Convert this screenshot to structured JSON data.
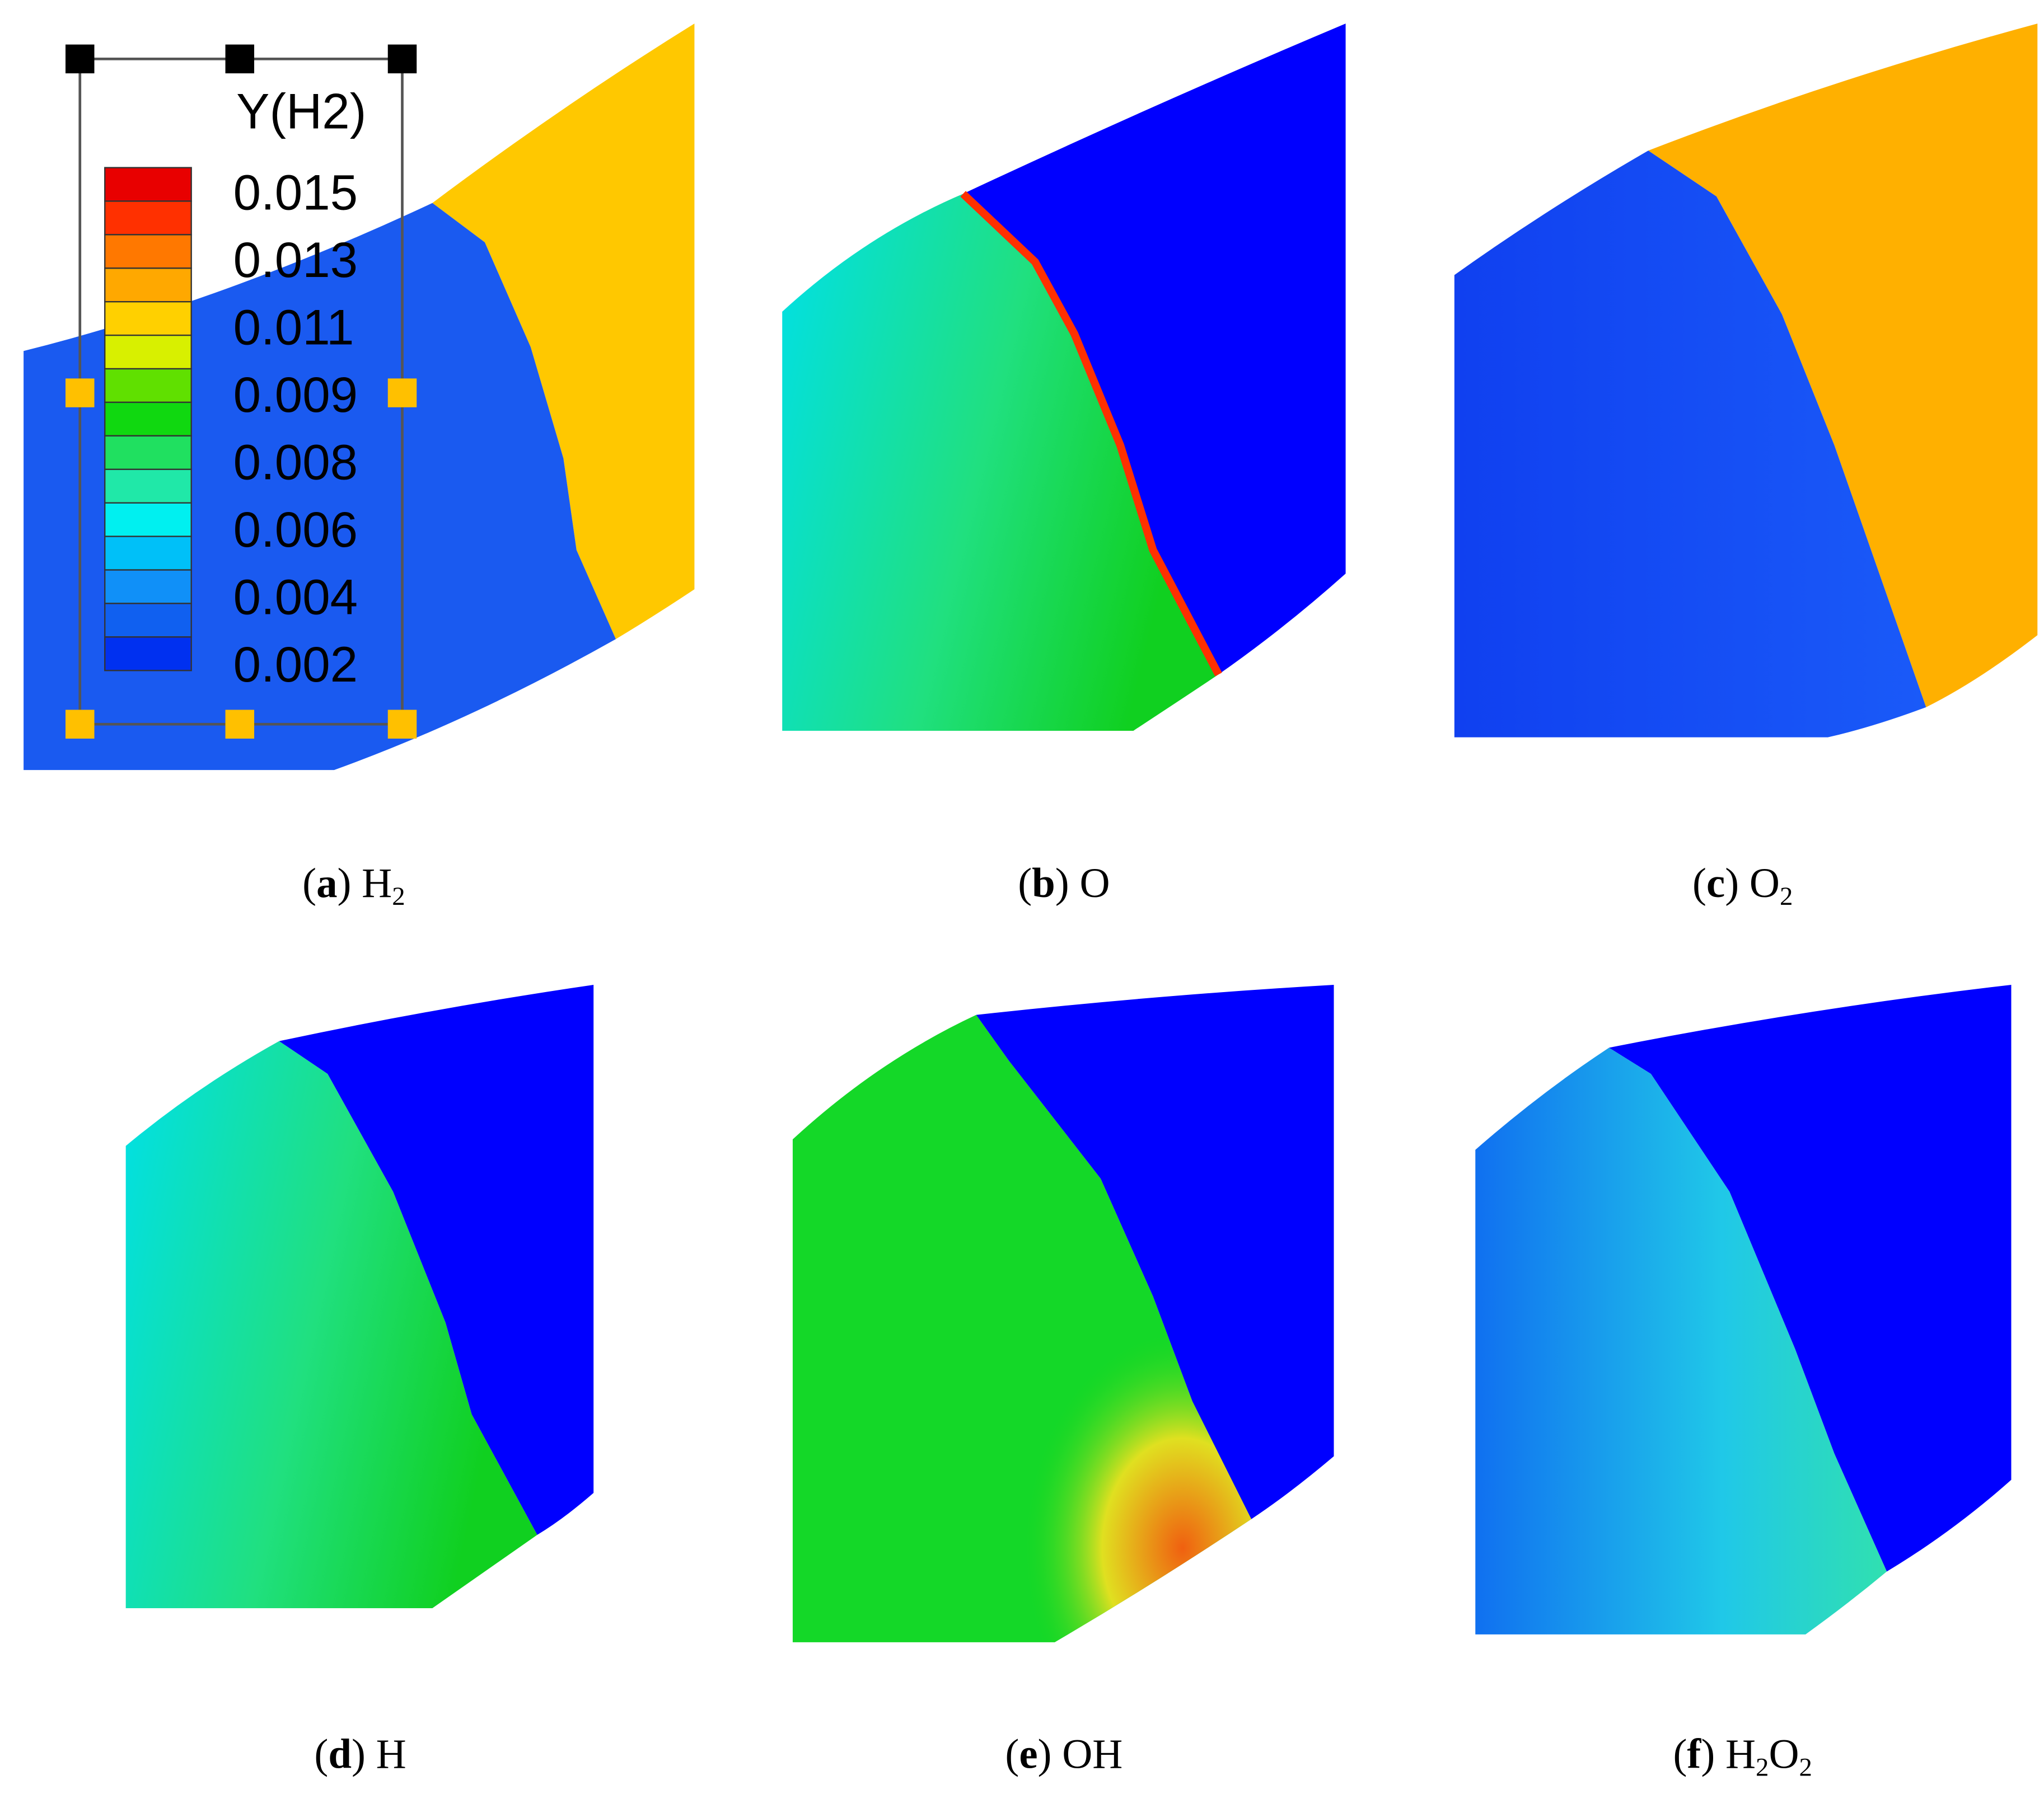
{
  "legend": {
    "title": "Y(H2)",
    "labels": [
      "0.015",
      "0.013",
      "0.011",
      "0.009",
      "0.008",
      "0.006",
      "0.004",
      "0.002"
    ]
  },
  "captions": [
    {
      "parts": [
        {
          "t": "("
        },
        {
          "t": "a",
          "bold": true
        },
        {
          "t": ") H"
        },
        {
          "t": "2",
          "sub": true
        }
      ]
    },
    {
      "parts": [
        {
          "t": "("
        },
        {
          "t": "b",
          "bold": true
        },
        {
          "t": ") O"
        }
      ]
    },
    {
      "parts": [
        {
          "t": "("
        },
        {
          "t": "c",
          "bold": true
        },
        {
          "t": ") O"
        },
        {
          "t": "2",
          "sub": true
        }
      ]
    },
    {
      "parts": [
        {
          "t": "("
        },
        {
          "t": "d",
          "bold": true
        },
        {
          "t": ") H"
        }
      ]
    },
    {
      "parts": [
        {
          "t": "("
        },
        {
          "t": "e",
          "bold": true
        },
        {
          "t": ") OH"
        }
      ]
    },
    {
      "parts": [
        {
          "t": "("
        },
        {
          "t": "f",
          "bold": true
        },
        {
          "t": ") H"
        },
        {
          "t": "2",
          "sub": true
        },
        {
          "t": "O"
        },
        {
          "t": "2",
          "sub": true
        }
      ]
    }
  ]
}
